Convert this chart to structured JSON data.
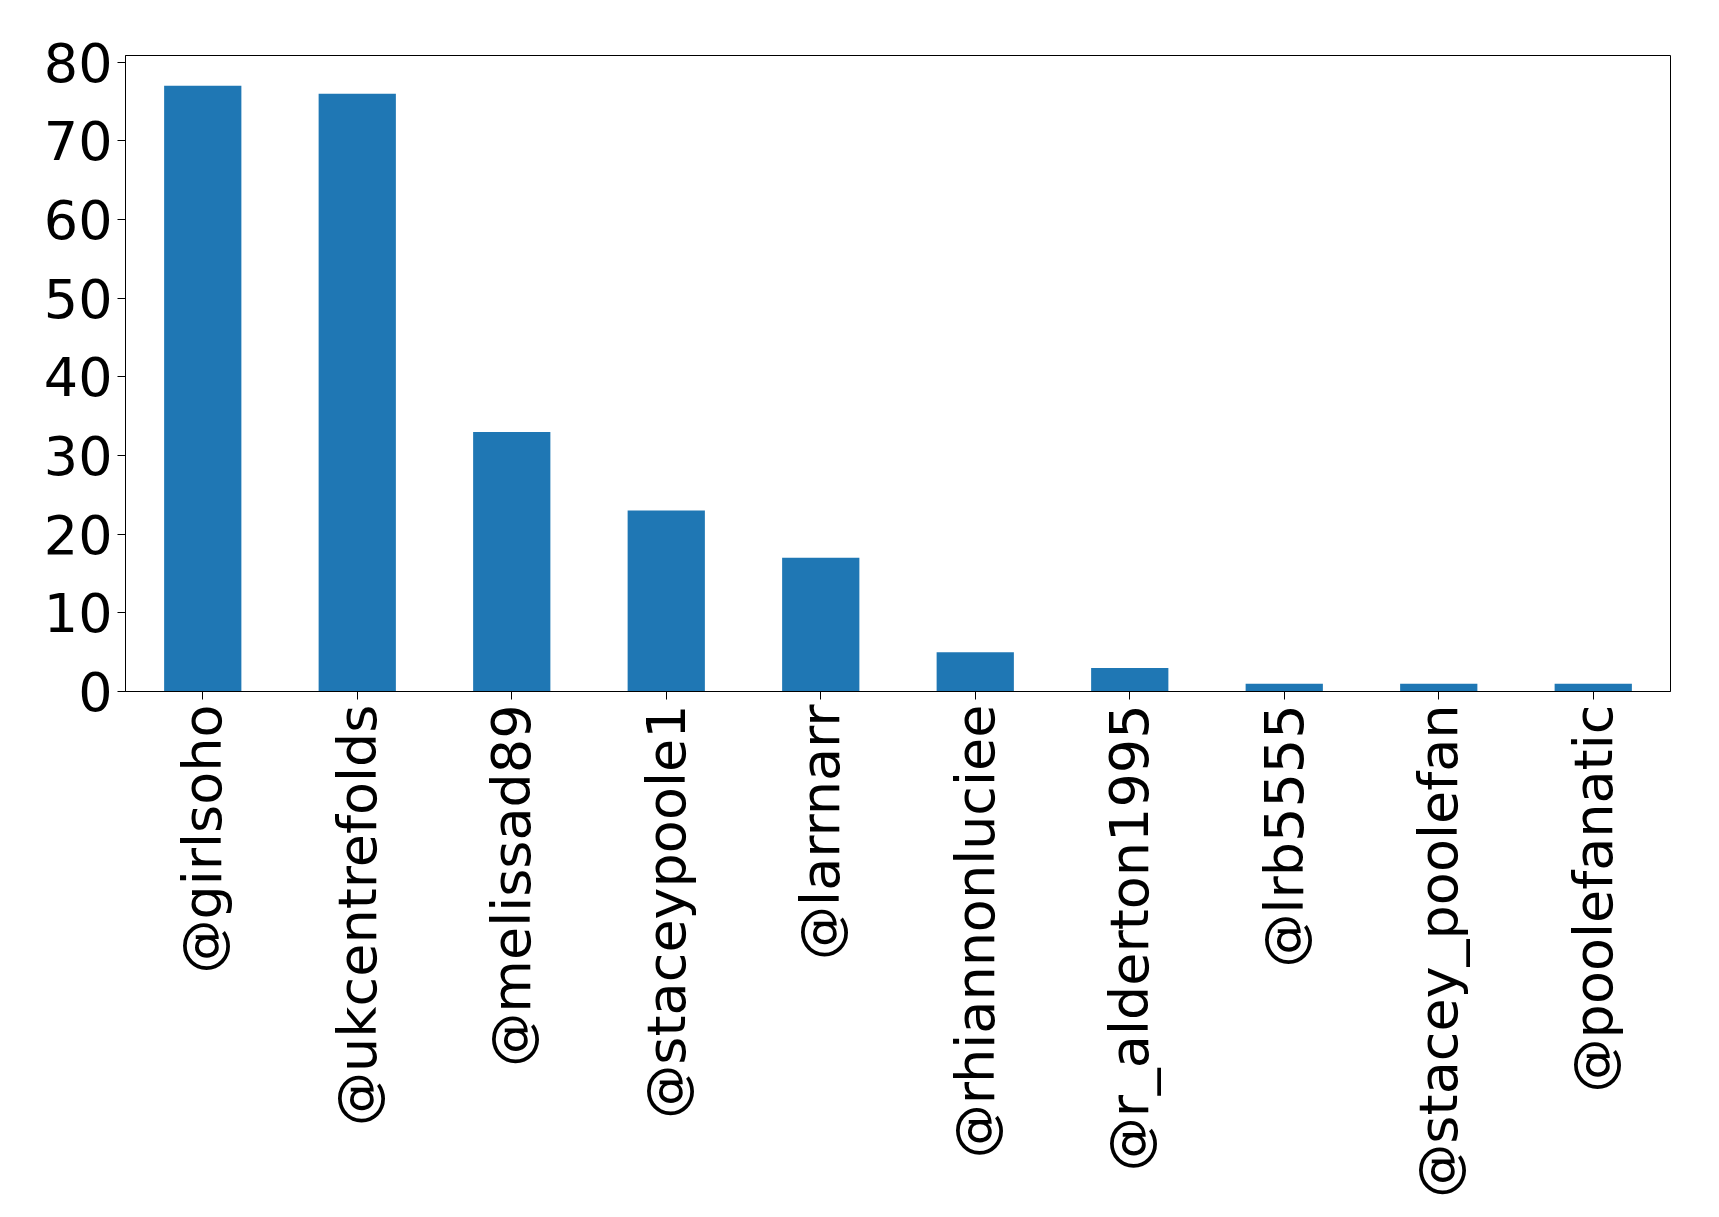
{
  "chart_data": {
    "type": "bar",
    "categories": [
      "@girlsoho",
      "@ukcentrefolds",
      "@melissad89",
      "@staceypoole1",
      "@larrnarr",
      "@rhiannonluciee",
      "@r_alderton1995",
      "@lrb5555",
      "@stacey_poolefan",
      "@poolefanatic"
    ],
    "values": [
      77,
      76,
      33,
      23,
      17,
      5,
      3,
      1,
      1,
      1
    ],
    "color": "#1f77b4",
    "ylim": [
      0,
      80.85
    ],
    "yticks": [
      0,
      10,
      20,
      30,
      40,
      50,
      60,
      70,
      80
    ]
  }
}
